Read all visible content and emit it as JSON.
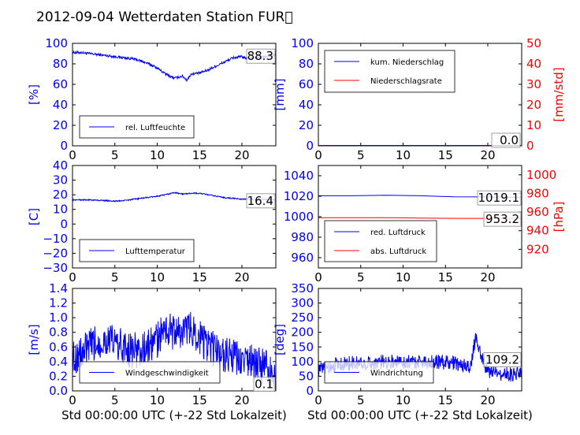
{
  "title": "2012-09-04 Wetterdaten Station FUR\u0000",
  "xlabel": "Std 00:00:00 UTC (+-22 Std Lokalzeit)",
  "colors": {
    "left_axis": "#0000ff",
    "right_axis": "#ff0000"
  },
  "chart_data": [
    {
      "type": "line",
      "ylabel": "[%]",
      "xlim": [
        0,
        24
      ],
      "ylim": [
        0,
        100
      ],
      "xticks": [
        "0",
        "5",
        "10",
        "15",
        "20"
      ],
      "yticks": [
        "0",
        "20",
        "40",
        "60",
        "80",
        "100"
      ],
      "annotation": "88.3",
      "annotation_y": 88.3,
      "series": [
        {
          "name": "rel. Luftfeuchte",
          "color": "#0000ff",
          "noise": 1.2,
          "x": [
            0,
            1,
            2,
            3,
            4,
            5,
            6,
            7,
            8,
            9,
            10,
            11,
            12,
            13,
            13.5,
            14,
            15,
            16,
            17,
            18,
            19,
            20,
            20.5,
            21,
            22,
            23,
            24
          ],
          "y": [
            91,
            91,
            90,
            89,
            88,
            87,
            86,
            85,
            83,
            80,
            76,
            70,
            66,
            68,
            64,
            70,
            71,
            74,
            78,
            82,
            86,
            87,
            85,
            86,
            86,
            87,
            89
          ]
        }
      ]
    },
    {
      "type": "line",
      "ylabel": "[mm]",
      "ylabel_right": "[mm/std]",
      "xlim": [
        0,
        24
      ],
      "ylim": [
        0,
        100
      ],
      "ylim_right": [
        0,
        50
      ],
      "xticks": [
        "0",
        "5",
        "10",
        "15",
        "20"
      ],
      "yticks": [
        "0",
        "20",
        "40",
        "60",
        "80",
        "100"
      ],
      "yticks_right": [
        "0",
        "10",
        "20",
        "30",
        "40",
        "50"
      ],
      "annotation": "0.0",
      "annotation_y": 0,
      "series": [
        {
          "name": "kum. Niederschlag",
          "color": "#0000ff",
          "x": [
            0,
            24
          ],
          "y": [
            0.3,
            0.3
          ]
        },
        {
          "name": "Niederschlagsrate",
          "color": "#ff0000",
          "x": [
            0,
            24
          ],
          "y": [
            0.2,
            0.2
          ]
        }
      ]
    },
    {
      "type": "line",
      "ylabel": "[C]",
      "xlim": [
        0,
        24
      ],
      "ylim": [
        -30,
        40
      ],
      "xticks": [
        "0",
        "5",
        "10",
        "15",
        "20"
      ],
      "yticks": [
        "−30",
        "−20",
        "−10",
        "0",
        "10",
        "20",
        "30",
        "40"
      ],
      "annotation": "16.4",
      "annotation_y": 16.4,
      "series": [
        {
          "name": "Lufttemperatur",
          "color": "#0000ff",
          "noise": 0.4,
          "x": [
            0,
            2,
            4,
            5,
            6,
            8,
            10,
            11,
            12,
            13,
            14,
            15,
            16,
            17,
            18,
            19,
            20,
            22,
            24
          ],
          "y": [
            16.5,
            16.5,
            16,
            15.6,
            16,
            17.5,
            19,
            20,
            21.5,
            20.5,
            21,
            21,
            20,
            19,
            18,
            17.5,
            17,
            17,
            16.4
          ]
        }
      ]
    },
    {
      "type": "line",
      "ylabel": "[hPa]",
      "xlim": [
        0,
        24
      ],
      "ylim": [
        950,
        1050
      ],
      "ylim_right": [
        900,
        1010
      ],
      "xticks": [
        "0",
        "5",
        "10",
        "15",
        "20"
      ],
      "yticks": [
        "960",
        "980",
        "1000",
        "1020",
        "1040"
      ],
      "yticks_right": [
        "920",
        "940",
        "960",
        "980",
        "1000"
      ],
      "annotation": "1019.1",
      "annotation_y": 1019.1,
      "annotation2": "953.2",
      "annotation2_y": 953.2,
      "series": [
        {
          "name": "red. Luftdruck",
          "color": "#0000ff",
          "axis": "left",
          "x": [
            0,
            4,
            8,
            12,
            16,
            20,
            24
          ],
          "y": [
            1020.5,
            1020.5,
            1021,
            1020.5,
            1019.5,
            1019.3,
            1019.1
          ]
        },
        {
          "name": "abs. Luftdruck",
          "color": "#ff0000",
          "axis": "right",
          "x": [
            0,
            4,
            8,
            12,
            16,
            20,
            24
          ],
          "y": [
            954,
            954,
            954,
            953.6,
            953.2,
            953.2,
            953.2
          ]
        }
      ]
    },
    {
      "type": "line",
      "ylabel": "[m/s]",
      "xlim": [
        0,
        24
      ],
      "ylim": [
        0,
        1.4
      ],
      "xticks": [
        "0",
        "5",
        "10",
        "15",
        "20"
      ],
      "yticks": [
        "0.0",
        "0.2",
        "0.4",
        "0.6",
        "0.8",
        "1.0",
        "1.2",
        "1.4"
      ],
      "annotation": "0.1",
      "annotation_y": 0.1,
      "series": [
        {
          "name": "Windgeschwindigkeit",
          "color": "#0000ff",
          "noise": 0.25,
          "x": [
            0,
            1,
            2,
            3,
            4,
            5,
            6,
            7,
            8,
            9,
            10,
            11,
            12,
            13,
            14,
            15,
            16,
            17,
            18,
            19,
            20,
            21,
            22,
            23,
            24
          ],
          "y": [
            0.45,
            0.5,
            0.6,
            0.65,
            0.7,
            0.65,
            0.6,
            0.55,
            0.55,
            0.6,
            0.7,
            0.85,
            0.8,
            0.8,
            0.85,
            0.75,
            0.6,
            0.55,
            0.5,
            0.45,
            0.4,
            0.4,
            0.35,
            0.3,
            0.15
          ]
        }
      ]
    },
    {
      "type": "line",
      "ylabel": "[deg]",
      "xlim": [
        0,
        24
      ],
      "ylim": [
        0,
        350
      ],
      "xticks": [
        "0",
        "5",
        "10",
        "15",
        "20"
      ],
      "yticks": [
        "0",
        "50",
        "100",
        "150",
        "200",
        "250",
        "300",
        "350"
      ],
      "annotation": "109.2",
      "annotation_y": 109.2,
      "series": [
        {
          "name": "Windrichtung",
          "color": "#0000ff",
          "noise": 25,
          "x": [
            0,
            1,
            2,
            4,
            6,
            8,
            10,
            12,
            14,
            16,
            18,
            18.5,
            19,
            19.5,
            20,
            21,
            22,
            23,
            24
          ],
          "y": [
            70,
            80,
            90,
            95,
            95,
            100,
            100,
            100,
            100,
            95,
            80,
            180,
            150,
            90,
            70,
            60,
            60,
            55,
            60
          ]
        }
      ]
    }
  ]
}
